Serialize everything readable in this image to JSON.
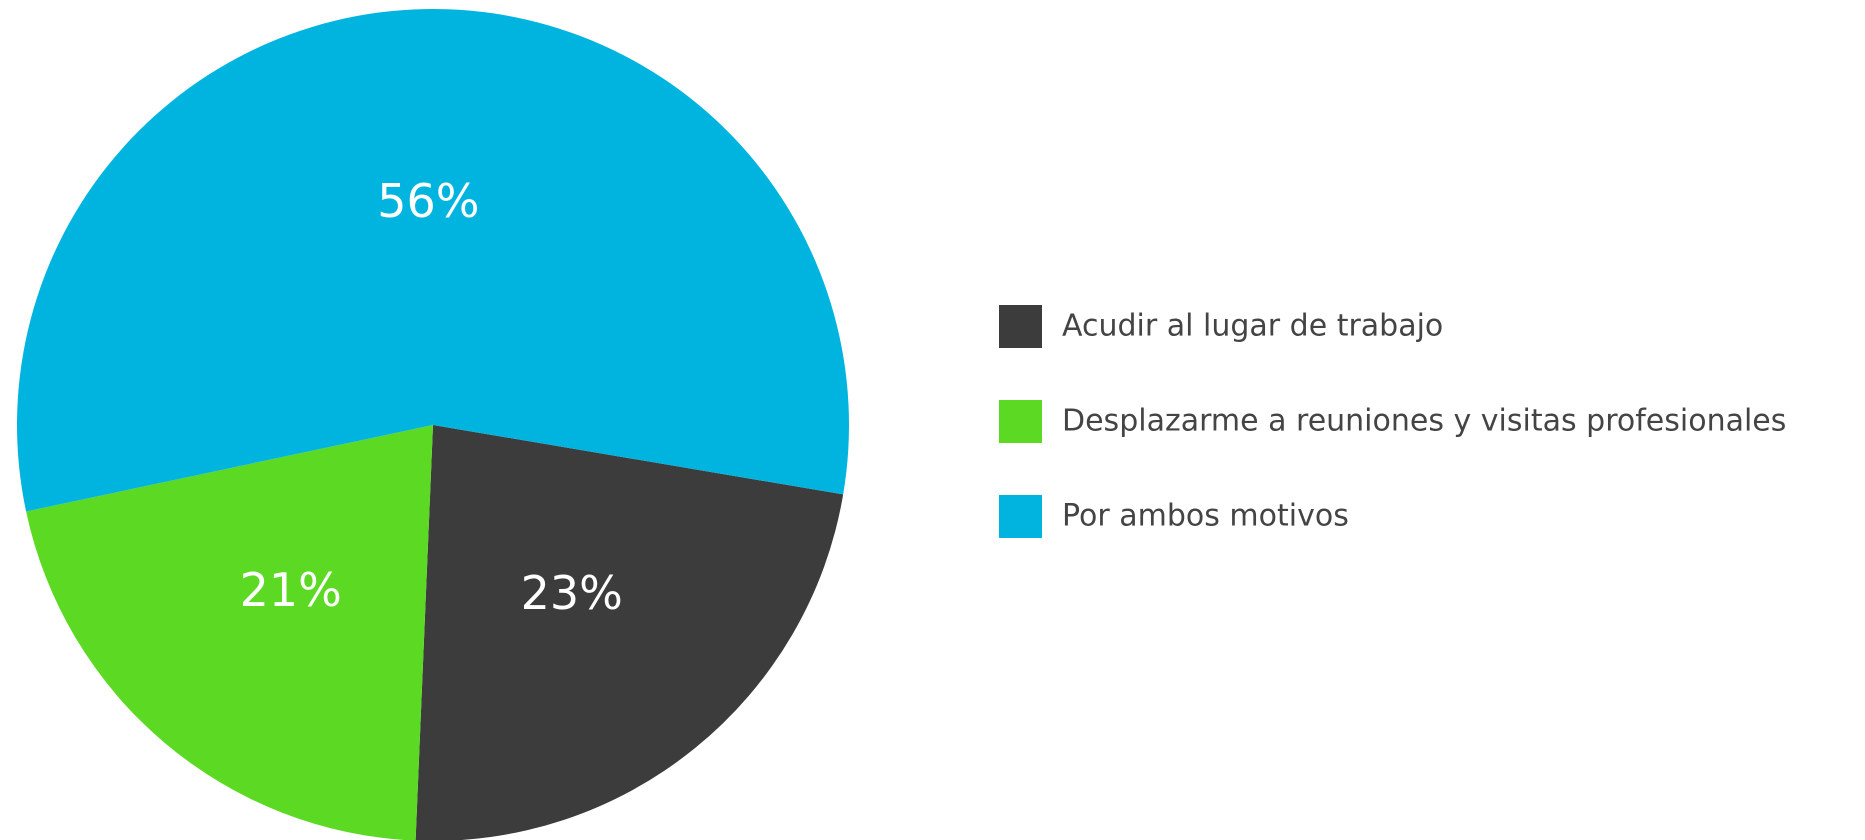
{
  "chart_data": {
    "type": "pie",
    "categories": [
      "Acudir al lugar de trabajo",
      "Desplazarme a reuniones y visitas profesionales",
      "Por ambos motivos"
    ],
    "values": [
      23,
      21,
      56
    ],
    "value_labels": [
      "23%",
      "21%",
      "56%"
    ],
    "colors": [
      "#3c3c3c",
      "#5cd923",
      "#00b4e0"
    ],
    "legend": "right"
  }
}
